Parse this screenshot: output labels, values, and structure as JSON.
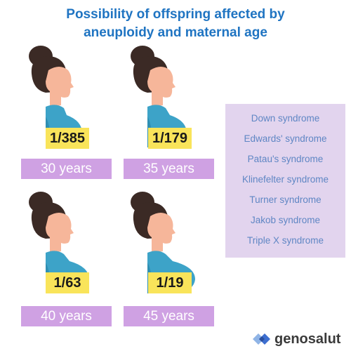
{
  "title": {
    "line1": "Possibility of offspring affected by",
    "line2": "aneuploidy and maternal age"
  },
  "cards": [
    {
      "ratio": "1/385",
      "age": "30 years"
    },
    {
      "ratio": "1/179",
      "age": "35 years"
    },
    {
      "ratio": "1/63",
      "age": "40 years"
    },
    {
      "ratio": "1/19",
      "age": "45 years"
    }
  ],
  "syndromes": [
    "Down syndrome",
    "Edwards' syndrome",
    "Patau's syndrome",
    "Klinefelter syndrome",
    "Turner syndrome",
    "Jakob syndrome",
    "Triple X syndrome"
  ],
  "brand": {
    "name": "genosalut",
    "logo_icon": "genosalut-logo-icon"
  },
  "colors": {
    "title": "#1f74c2",
    "ratio_bg": "#f9e45a",
    "age_bg": "#cfa1e3",
    "panel_bg": "#e2d4ee",
    "panel_text": "#5f86c4",
    "dress": "#3da3c8",
    "hair": "#3b2a25",
    "skin": "#f6b69a"
  }
}
